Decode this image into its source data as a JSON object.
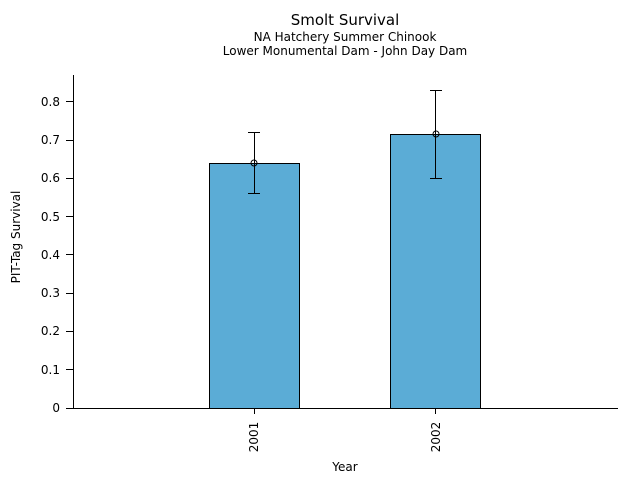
{
  "chart_data": {
    "type": "bar",
    "title": "Smolt Survival",
    "subtitle1": "NA Hatchery Summer Chinook",
    "subtitle2": "Lower Monumental Dam - John Day Dam",
    "xlabel": "Year",
    "ylabel": "PIT-Tag Survival",
    "categories": [
      "2001",
      "2002"
    ],
    "values": [
      0.64,
      0.715
    ],
    "error_low": [
      0.56,
      0.6
    ],
    "error_high": [
      0.72,
      0.83
    ],
    "yticks": [
      0,
      0.1,
      0.2,
      0.3,
      0.4,
      0.5,
      0.6,
      0.7,
      0.8
    ],
    "ytick_labels": [
      "0",
      "0.1",
      "0.2",
      "0.3",
      "0.4",
      "0.5",
      "0.6",
      "0.7",
      "0.8"
    ],
    "ylim": [
      0,
      0.87
    ],
    "grid": false,
    "legend": "none",
    "marker": "open-circle",
    "bar_color": "#5BACD6",
    "bar_edge_color": "#000000",
    "error_bar_color": "#000000",
    "background_color": "#FFFFFF"
  }
}
